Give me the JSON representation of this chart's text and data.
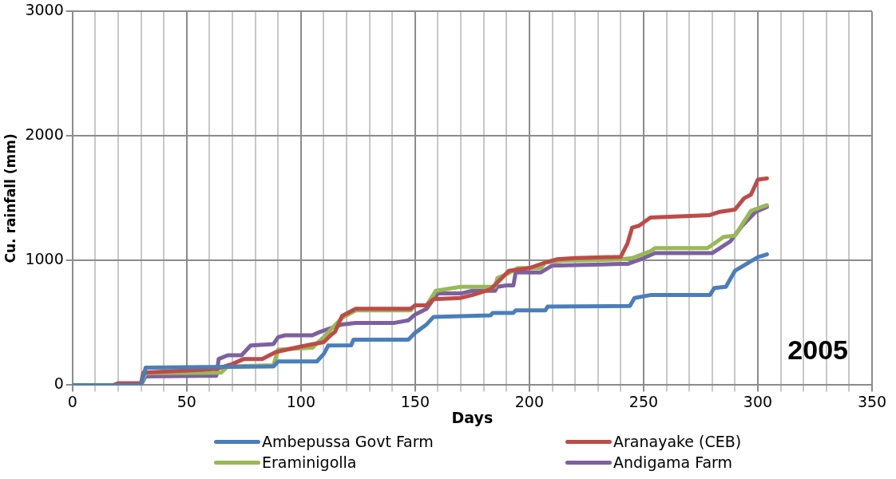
{
  "chart_data": {
    "type": "line",
    "xlabel": "Days",
    "ylabel": "Cu. rainfall (mm)",
    "annotations": [
      "2005"
    ],
    "xlim": [
      0,
      350
    ],
    "ylim": [
      0,
      3000
    ],
    "xticks": [
      0,
      {
        "value": 10,
        "label": null
      },
      {
        "value": 20,
        "label": null
      },
      {
        "value": 30,
        "label": null
      },
      {
        "value": 40,
        "label": null
      },
      50,
      {
        "value": 60,
        "label": null
      },
      {
        "value": 70,
        "label": null
      },
      {
        "value": 80,
        "label": null
      },
      {
        "value": 90,
        "label": null
      },
      100,
      {
        "value": 110,
        "label": null
      },
      {
        "value": 120,
        "label": null
      },
      {
        "value": 130,
        "label": null
      },
      {
        "value": 140,
        "label": null
      },
      150,
      {
        "value": 160,
        "label": null
      },
      {
        "value": 170,
        "label": null
      },
      {
        "value": 180,
        "label": null
      },
      {
        "value": 190,
        "label": null
      },
      200,
      {
        "value": 210,
        "label": null
      },
      {
        "value": 220,
        "label": null
      },
      {
        "value": 230,
        "label": null
      },
      {
        "value": 240,
        "label": null
      },
      250,
      {
        "value": 260,
        "label": null
      },
      {
        "value": 270,
        "label": null
      },
      {
        "value": 280,
        "label": null
      },
      {
        "value": 290,
        "label": null
      },
      300,
      {
        "value": 310,
        "label": null
      },
      {
        "value": 320,
        "label": null
      },
      {
        "value": 330,
        "label": null
      },
      {
        "value": 340,
        "label": null
      },
      350
    ],
    "yticks": [
      0,
      1000,
      2000,
      3000
    ],
    "grid": true,
    "legend": "bottom",
    "marker": "none",
    "line_style": "solid",
    "series": [
      {
        "name": "Ambepussa Govt Farm",
        "color": "#4a7ebb",
        "x": [
          0,
          30,
          32,
          60,
          88,
          90,
          107,
          110,
          112,
          122,
          123,
          147,
          150,
          155,
          158,
          183,
          184,
          193,
          194,
          207,
          208,
          244,
          246,
          253,
          279,
          281,
          286,
          290,
          300,
          304
        ],
        "values": [
          0,
          0,
          140,
          145,
          150,
          190,
          190,
          250,
          318,
          320,
          365,
          365,
          420,
          487,
          547,
          560,
          580,
          580,
          600,
          600,
          630,
          635,
          700,
          723,
          723,
          780,
          790,
          918,
          1027,
          1050
        ]
      },
      {
        "name": "Aranayake (CEB)",
        "color": "#be4b48",
        "x": [
          0,
          18,
          20,
          30,
          31,
          63,
          70,
          75,
          83,
          89,
          100,
          110,
          113,
          115,
          118,
          124,
          148,
          150,
          155,
          158,
          170,
          175,
          183,
          188,
          191,
          200,
          207,
          212,
          220,
          240,
          243,
          245,
          248,
          253,
          279,
          283,
          290,
          294,
          297,
          300,
          304
        ],
        "values": [
          0,
          0,
          15,
          15,
          100,
          130,
          170,
          210,
          210,
          265,
          310,
          345,
          400,
          430,
          555,
          613,
          613,
          640,
          640,
          690,
          700,
          723,
          770,
          860,
          918,
          940,
          985,
          1010,
          1020,
          1030,
          1140,
          1265,
          1280,
          1345,
          1365,
          1390,
          1410,
          1500,
          1530,
          1650,
          1660
        ]
      },
      {
        "name": "Eraminigolla",
        "color": "#98b954",
        "x": [
          0,
          30,
          32,
          65,
          68,
          88,
          90,
          105,
          110,
          113,
          118,
          124,
          148,
          150,
          155,
          159,
          170,
          185,
          186,
          190,
          195,
          205,
          207,
          215,
          240,
          245,
          253,
          255,
          278,
          285,
          290,
          297,
          304
        ],
        "values": [
          0,
          0,
          95,
          100,
          150,
          160,
          285,
          300,
          385,
          445,
          540,
          600,
          600,
          640,
          640,
          757,
          790,
          790,
          860,
          890,
          940,
          940,
          985,
          1000,
          1010,
          1020,
          1075,
          1100,
          1100,
          1190,
          1200,
          1400,
          1445
        ]
      },
      {
        "name": "Andigama Farm",
        "color": "#7d60a0",
        "x": [
          0,
          30,
          32,
          63,
          64,
          68,
          74,
          78,
          88,
          90,
          93,
          105,
          108,
          112,
          118,
          124,
          141,
          147,
          150,
          155,
          158,
          160,
          170,
          175,
          185,
          186,
          190,
          193,
          194,
          205,
          210,
          240,
          243,
          250,
          255,
          280,
          283,
          288,
          293,
          299,
          304
        ],
        "values": [
          0,
          0,
          70,
          75,
          210,
          240,
          240,
          318,
          330,
          385,
          400,
          400,
          425,
          450,
          487,
          500,
          500,
          520,
          567,
          613,
          690,
          736,
          736,
          757,
          757,
          790,
          800,
          800,
          905,
          905,
          960,
          973,
          973,
          1020,
          1060,
          1060,
          1095,
          1155,
          1277,
          1390,
          1430
        ]
      }
    ]
  }
}
